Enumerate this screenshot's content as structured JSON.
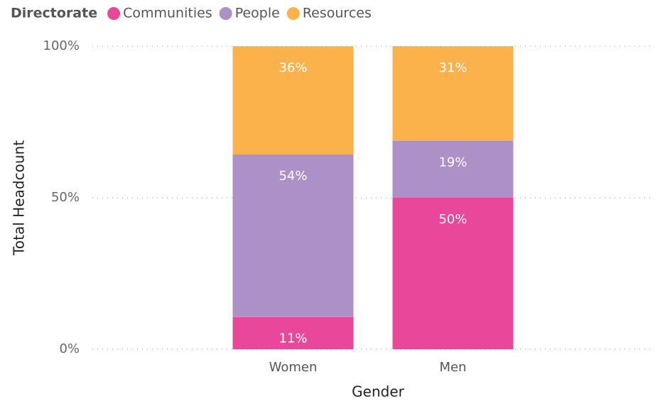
{
  "chart_data": {
    "type": "stacked_bar_100",
    "legend_title": "Directorate",
    "x_label": "Gender",
    "y_label": "Total Headcount",
    "categories": [
      "Women",
      "Men"
    ],
    "series": [
      {
        "name": "Communities",
        "color": "#e8479a",
        "values": [
          10.6,
          50.0
        ],
        "value_labels": [
          "11%",
          "50%"
        ]
      },
      {
        "name": "People",
        "color": "#ad91c6",
        "values": [
          53.7,
          18.8
        ],
        "value_labels": [
          "54%",
          "19%"
        ]
      },
      {
        "name": "Resources",
        "color": "#fbb24a",
        "values": [
          35.7,
          31.2
        ],
        "value_labels": [
          "36%",
          "31%"
        ]
      }
    ],
    "ylim": [
      0,
      100
    ],
    "yticks": [
      {
        "value": 0,
        "label": "0%"
      },
      {
        "value": 50,
        "label": "50%"
      },
      {
        "value": 100,
        "label": "100%"
      }
    ],
    "grid": true,
    "legend": "top-left"
  }
}
